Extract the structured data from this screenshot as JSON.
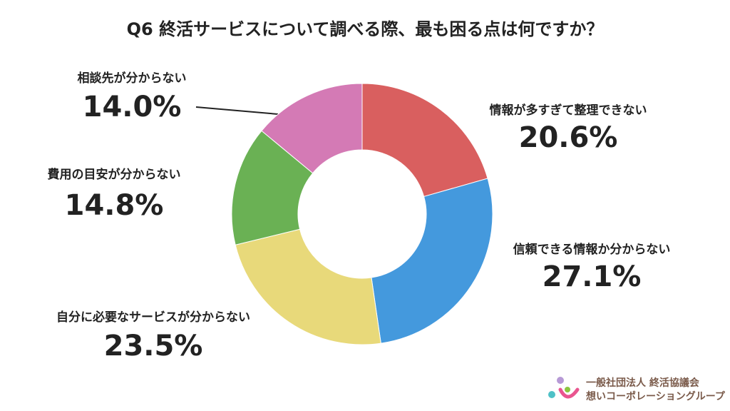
{
  "chart_data": {
    "type": "donut",
    "title": "Q6 終活サービスについて調べる際、最も困る点は何ですか？",
    "categories": [
      "情報が多すぎて整理できない",
      "信頼できる情報か分からない",
      "自分に必要なサービスが分からない",
      "費用の目安が分からない",
      "相談先が分からない"
    ],
    "values": [
      20.6,
      27.1,
      23.5,
      14.8,
      14.0
    ],
    "value_labels": [
      "20.6%",
      "27.1%",
      "23.5%",
      "14.8%",
      "14.0%"
    ],
    "colors": [
      "#d95f5f",
      "#4499dd",
      "#e8d97a",
      "#6ab154",
      "#d47ab5"
    ],
    "logo_lines": [
      "一般社団法人 終活協議会",
      "想いコーポレーショングループ"
    ]
  }
}
